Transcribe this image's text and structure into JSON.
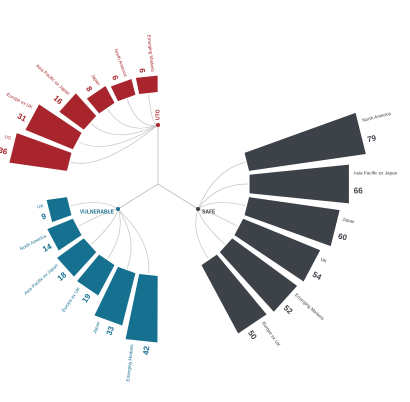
{
  "chart_data": {
    "type": "bar",
    "layout": "radial",
    "title": "",
    "groups": [
      {
        "name": "UTO",
        "color": "#a8252d",
        "bars": [
          {
            "label": "US",
            "value": 36
          },
          {
            "label": "Europe ex UK",
            "value": 31
          },
          {
            "label": "Asia Pacific ex Japan",
            "value": 16
          },
          {
            "label": "Japan",
            "value": 8
          },
          {
            "label": "North America",
            "value": 6
          },
          {
            "label": "Emerging Markets",
            "value": 6
          }
        ]
      },
      {
        "name": "SAFE",
        "color": "#3d4248",
        "bars": [
          {
            "label": "North America",
            "value": 79
          },
          {
            "label": "Asia Pacific ex Japan",
            "value": 66
          },
          {
            "label": "Japan",
            "value": 60
          },
          {
            "label": "UK",
            "value": 54
          },
          {
            "label": "Emerging Markets",
            "value": 52
          },
          {
            "label": "Europe ex UK",
            "value": 50
          }
        ]
      },
      {
        "name": "VULNERABLE",
        "color": "#16708f",
        "bars": [
          {
            "label": "Emerging Markets",
            "value": 42
          },
          {
            "label": "Japan",
            "value": 33
          },
          {
            "label": "Europe ex UK",
            "value": 19
          },
          {
            "label": "Asia Pacific ex Japan",
            "value": 18
          },
          {
            "label": "North America",
            "value": 14
          },
          {
            "label": "UK",
            "value": 9
          }
        ]
      }
    ]
  }
}
